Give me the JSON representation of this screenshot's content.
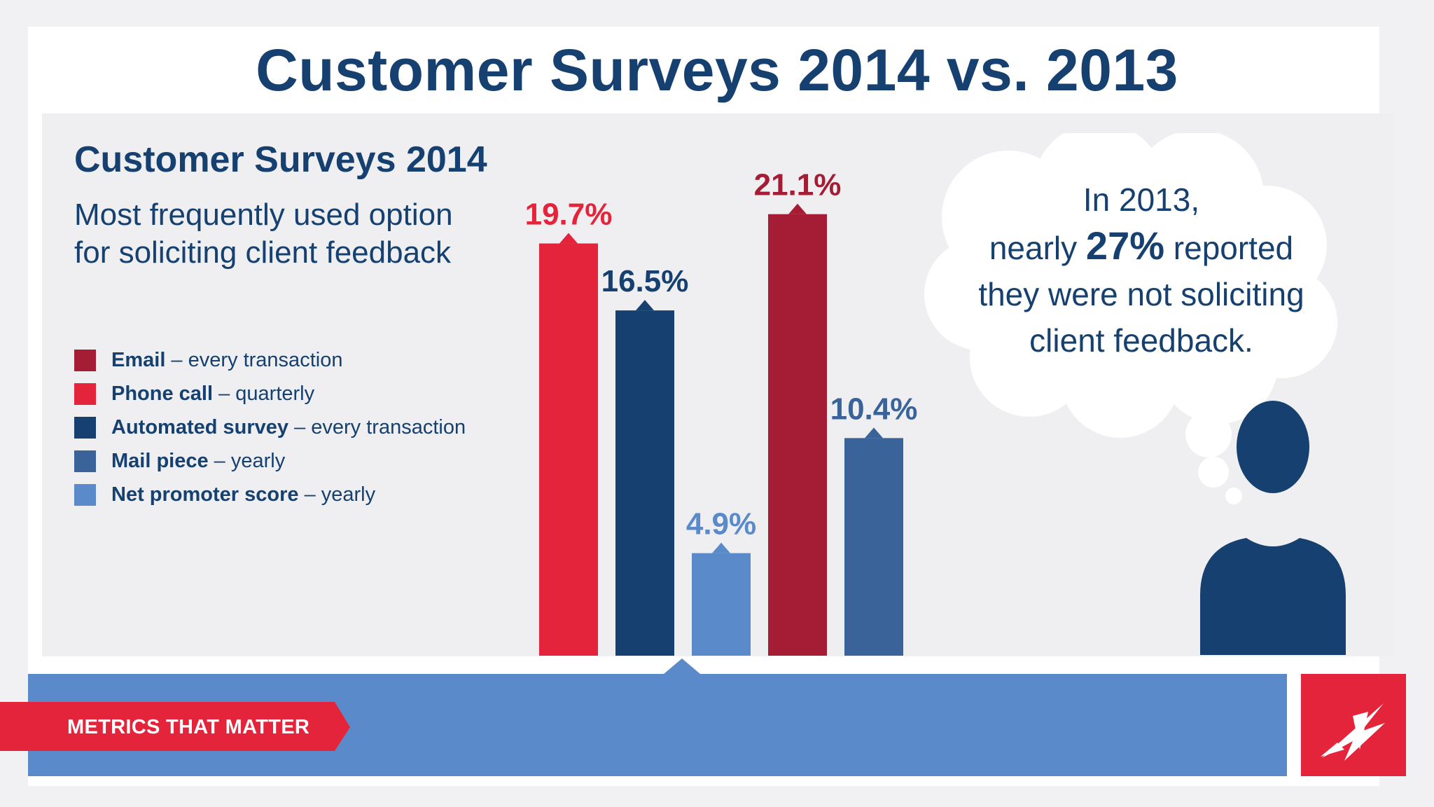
{
  "title": "Customer Surveys 2014 vs. 2013",
  "subtitle": "Customer Surveys 2014",
  "description_line1": "Most frequently used option",
  "description_line2": "for soliciting client feedback",
  "legend": [
    {
      "name": "Email",
      "detail": " – every transaction",
      "color": "#a51c35"
    },
    {
      "name": "Phone call",
      "detail": " – quarterly",
      "color": "#e3243b"
    },
    {
      "name": "Automated survey",
      "detail": " – every transaction",
      "color": "#15406f"
    },
    {
      "name": "Mail piece",
      "detail": " – yearly",
      "color": "#3a639a"
    },
    {
      "name": "Net promoter score",
      "detail": " – yearly",
      "color": "#5a8ac9"
    }
  ],
  "chart_data": {
    "type": "bar",
    "categories": [
      "Phone call",
      "Automated survey",
      "Net promoter score",
      "Email",
      "Mail piece"
    ],
    "values": [
      19.7,
      16.5,
      4.9,
      21.1,
      10.4
    ],
    "labels": [
      "19.7%",
      "16.5%",
      "4.9%",
      "21.1%",
      "10.4%"
    ],
    "colors": [
      "#e3243b",
      "#15406f",
      "#5a8ac9",
      "#a51c35",
      "#3a639a"
    ],
    "label_colors": [
      "#e3243b",
      "#15406f",
      "#5a8ac9",
      "#a51c35",
      "#3a639a"
    ],
    "ylim": [
      0,
      23.3
    ],
    "grid": false
  },
  "callout": {
    "line1": "In 2013,",
    "line2_pre": "nearly ",
    "line2_big": "27%",
    "line2_post": " reported",
    "line3": "they were not soliciting",
    "line4": "client feedback."
  },
  "banner": {
    "label": "METRICS THAT MATTER"
  },
  "icons": {
    "person": "person-icon",
    "logo": "brand-logo-icon",
    "cloud": "thought-cloud-icon"
  },
  "colors": {
    "navy": "#15406f",
    "red": "#e3243b",
    "banner": "#5a8ac9"
  }
}
